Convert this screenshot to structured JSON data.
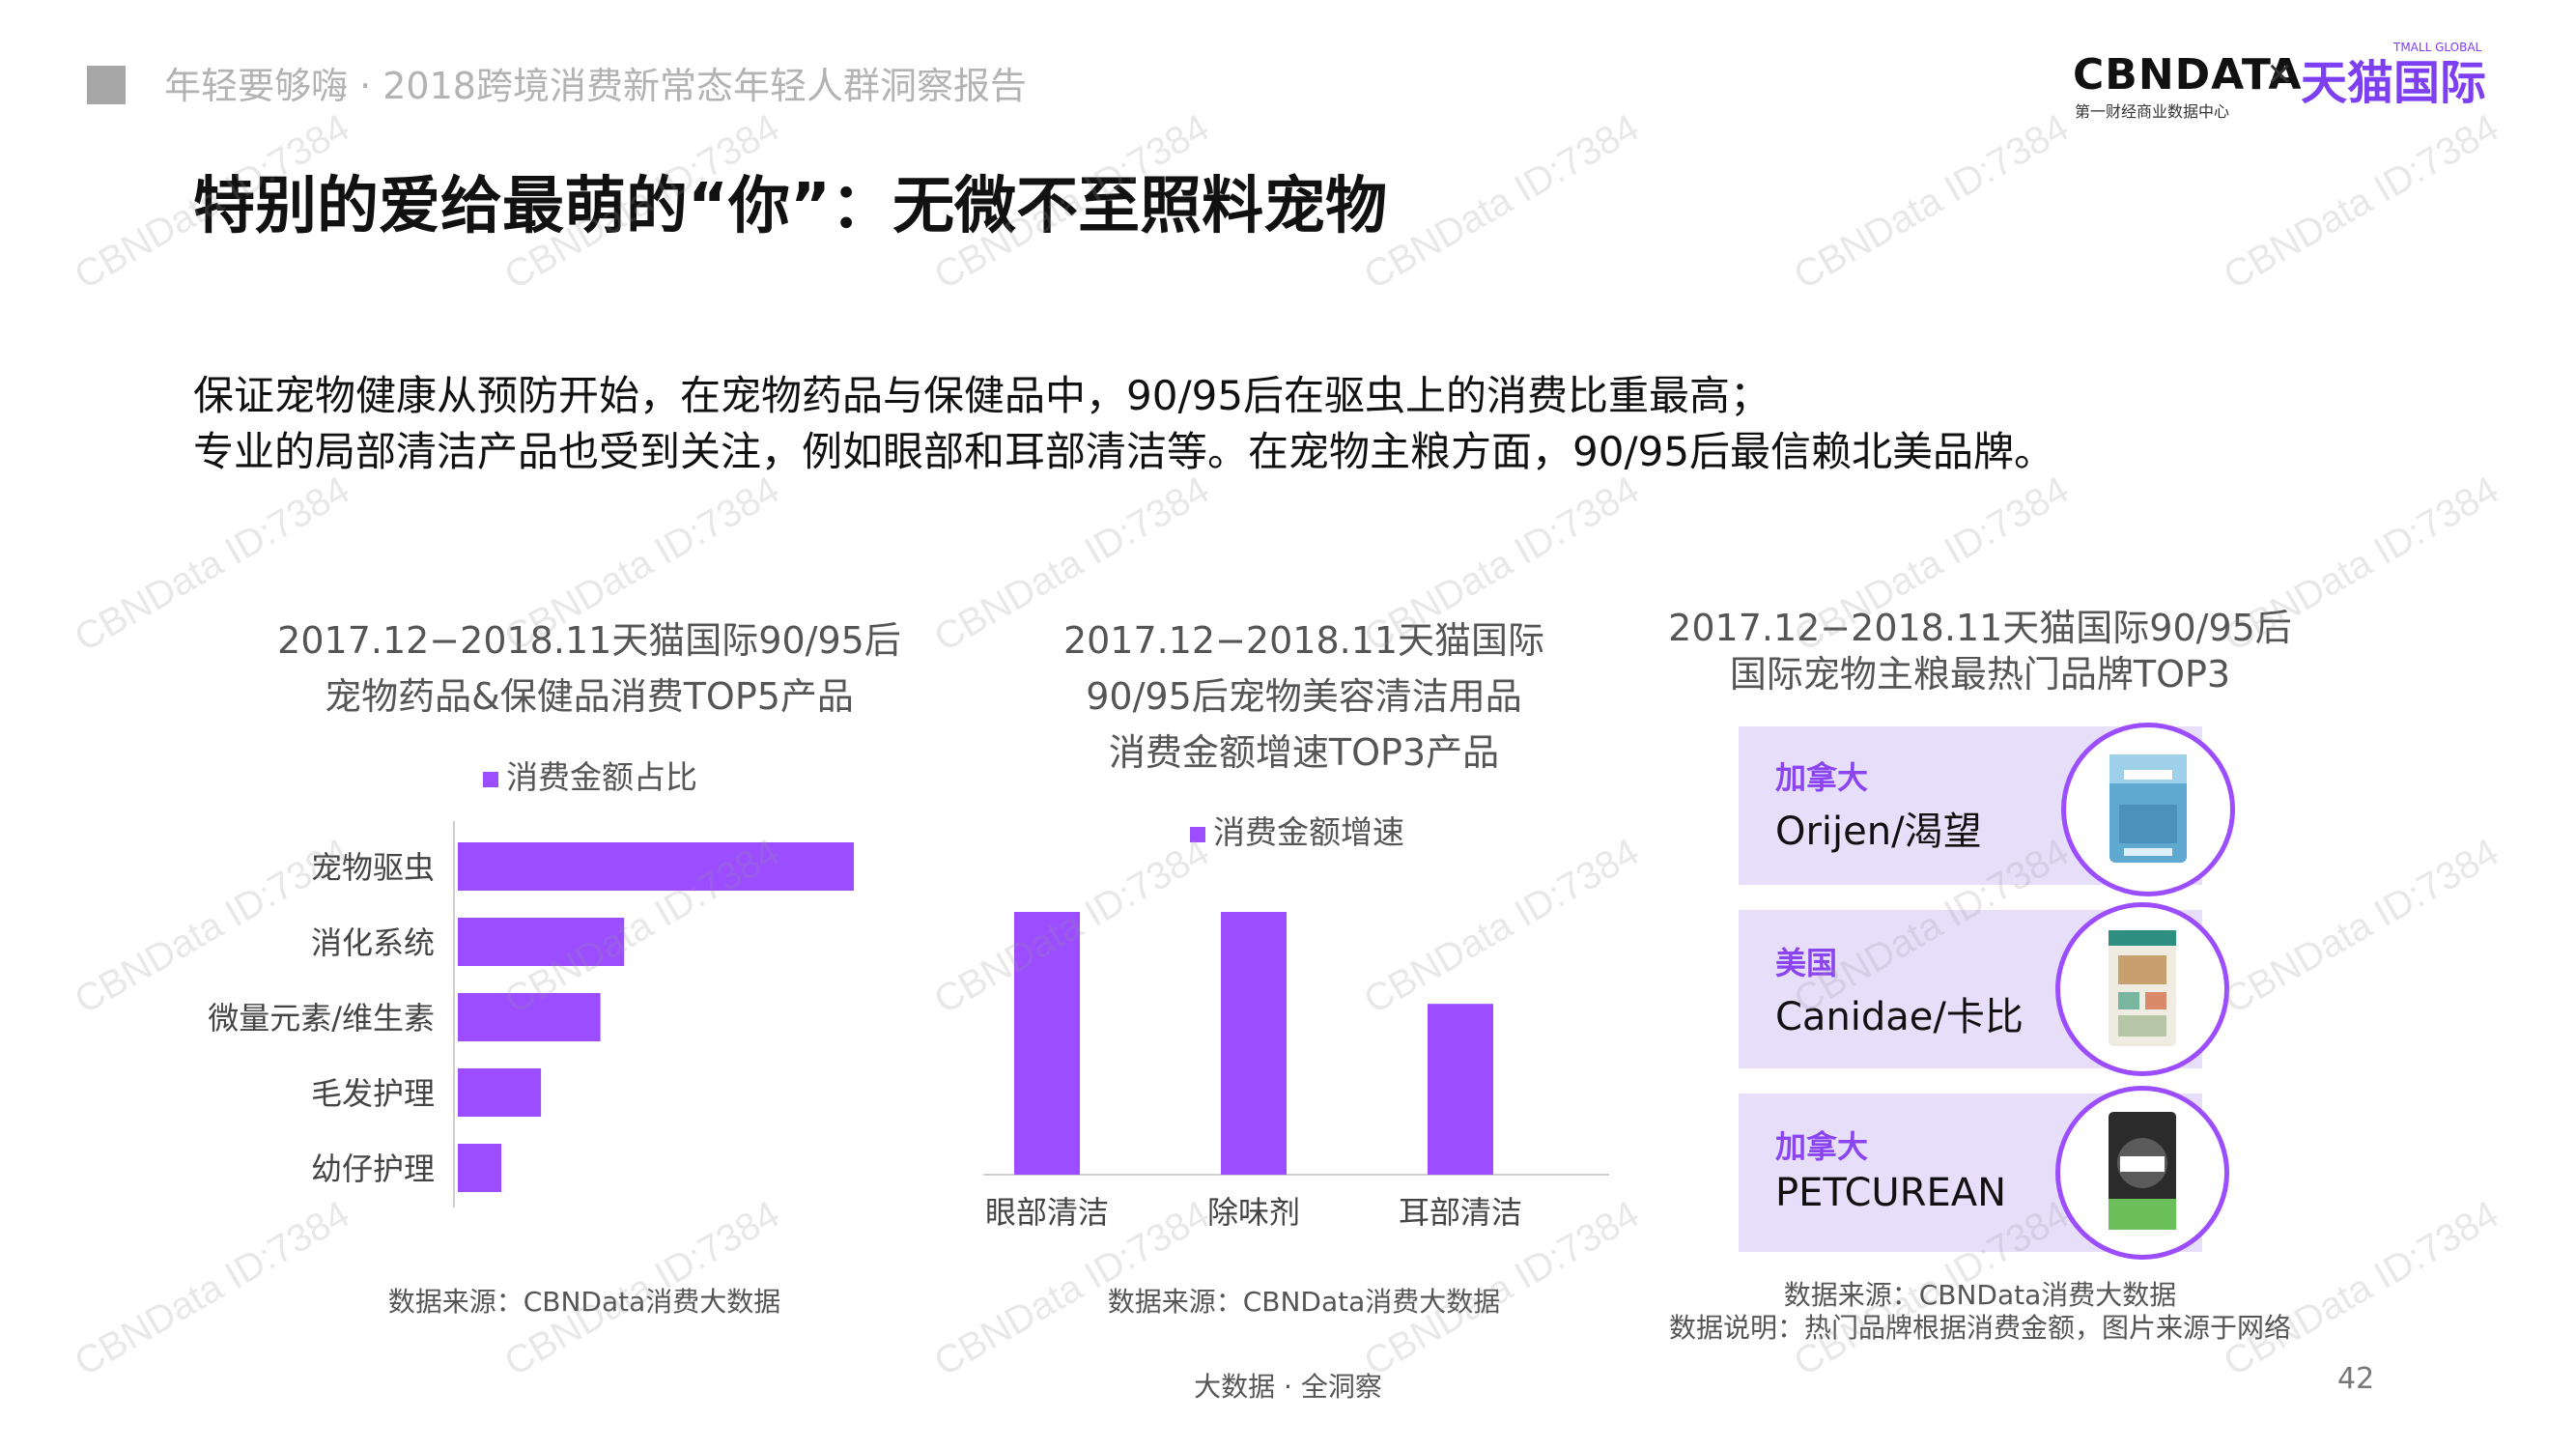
{
  "header": {
    "report_title": "年轻要够嗨 · 2018跨境消费新常态年轻人群洞察报告",
    "logo_cbn": "CBNDATA",
    "logo_times": "×",
    "logo_tmall": "天猫国际",
    "logo_sub": "第一财经商业数据中心",
    "logo_global": "TMALL GLOBAL"
  },
  "title": "特别的爱给最萌的“你”：无微不至照料宠物",
  "description": [
    "保证宠物健康从预防开始，在宠物药品与保健品中，90/95后在驱虫上的消费比重最高；",
    "专业的局部清洁产品也受到关注，例如眼部和耳部清洁等。在宠物主粮方面，90/95后最信赖北美品牌。"
  ],
  "colors": {
    "accent": "#9b4dff",
    "card_bg": "#e7defa",
    "country": "#8a45f0"
  },
  "panel1": {
    "title_lines": [
      "2017.12−2018.11天猫国际90/95后",
      "宠物药品&保健品消费TOP5产品"
    ],
    "source": "数据来源：CBNData消费大数据"
  },
  "panel2": {
    "title_lines": [
      "2017.12−2018.11天猫国际",
      "90/95后宠物美容清洁用品",
      "消费金额增速TOP3产品"
    ],
    "source": "数据来源：CBNData消费大数据"
  },
  "panel3": {
    "title_lines": [
      "2017.12−2018.11天猫国际90/95后",
      "国际宠物主粮最热门品牌TOP3"
    ],
    "brands": [
      {
        "country": "加拿大",
        "name": "Orijen/渴望",
        "icon": "orijen-package-icon"
      },
      {
        "country": "美国",
        "name": "Canidae/卡比",
        "icon": "canidae-package-icon"
      },
      {
        "country": "加拿大",
        "name": "PETCUREAN",
        "icon": "go-package-icon"
      }
    ],
    "source_lines": [
      "数据来源：CBNData消费大数据",
      "数据说明：热门品牌根据消费金额，图片来源于网络"
    ]
  },
  "chart_data": [
    {
      "type": "bar",
      "orientation": "horizontal",
      "categories": [
        "宠物驱虫",
        "消化系统",
        "微量元素/维生素",
        "毛发护理",
        "幼仔护理"
      ],
      "series": [
        {
          "name": "消费金额占比",
          "values": [
            100,
            42,
            36,
            21,
            11
          ]
        }
      ],
      "legend": "top",
      "grid": false
    },
    {
      "type": "bar",
      "orientation": "vertical",
      "categories": [
        "眼部清洁",
        "除味剂",
        "耳部清洁"
      ],
      "series": [
        {
          "name": "消费金额增速",
          "values": [
            100,
            100,
            65
          ]
        }
      ],
      "legend": "top",
      "grid": false
    }
  ],
  "footer": {
    "slogan": "大数据 · 全洞察",
    "page": "42"
  },
  "watermark": "CBNData ID:7384"
}
